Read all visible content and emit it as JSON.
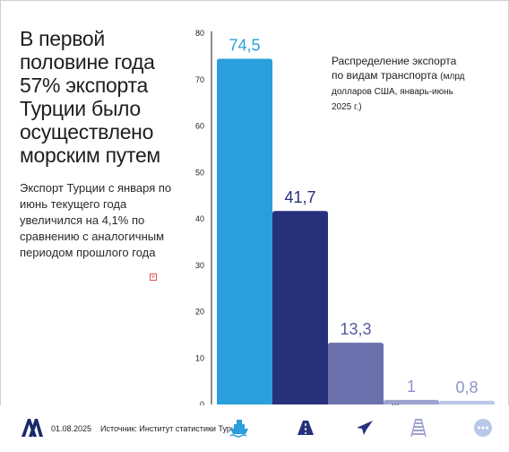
{
  "headline": "В первой половине года 57% экспорта Турции было осуществлено морским путем",
  "subtext": "Экспорт Турции с января по июнь текущего года увеличился на 4,1% по сравнению с аналогичным периодом прошлого года",
  "legend": {
    "main": "Распределение экспорта по видам транспорта",
    "small": "(млрд долларов США, январь-июнь 2025 г.)"
  },
  "footer": {
    "date": "01.08.2025",
    "source": "Источник: Институт статистики Турции"
  },
  "icons": [
    "ship-icon",
    "truck-icon",
    "airplane-icon",
    "railway-icon",
    "more-icon"
  ],
  "colors": {
    "sea": "#2a9fdc",
    "land": "#27307a",
    "air": "#6b71ad",
    "rail": "#9ea2cf",
    "other": "#b9c7ea",
    "label_sea": "#2a9fdc",
    "label_dark": "#27307a",
    "label_air": "#545b9e",
    "label_light": "#8e93c9"
  },
  "chart_data": {
    "type": "bar",
    "categories": [
      "Морской путь",
      "По суше",
      "Воздушный путь",
      "Железная дорога",
      "Другое"
    ],
    "values": [
      74.5,
      41.7,
      13.3,
      1,
      0.8
    ],
    "value_labels": [
      "74,5",
      "41,7",
      "13,3",
      "1",
      "0,8"
    ],
    "ylim": [
      0,
      80
    ],
    "yticks": [
      0,
      10,
      20,
      30,
      40,
      50,
      60,
      70,
      80
    ],
    "grid": false,
    "title": "Распределение экспорта по видам транспорта (млрд долларов США, январь-июнь 2025 г.)"
  }
}
